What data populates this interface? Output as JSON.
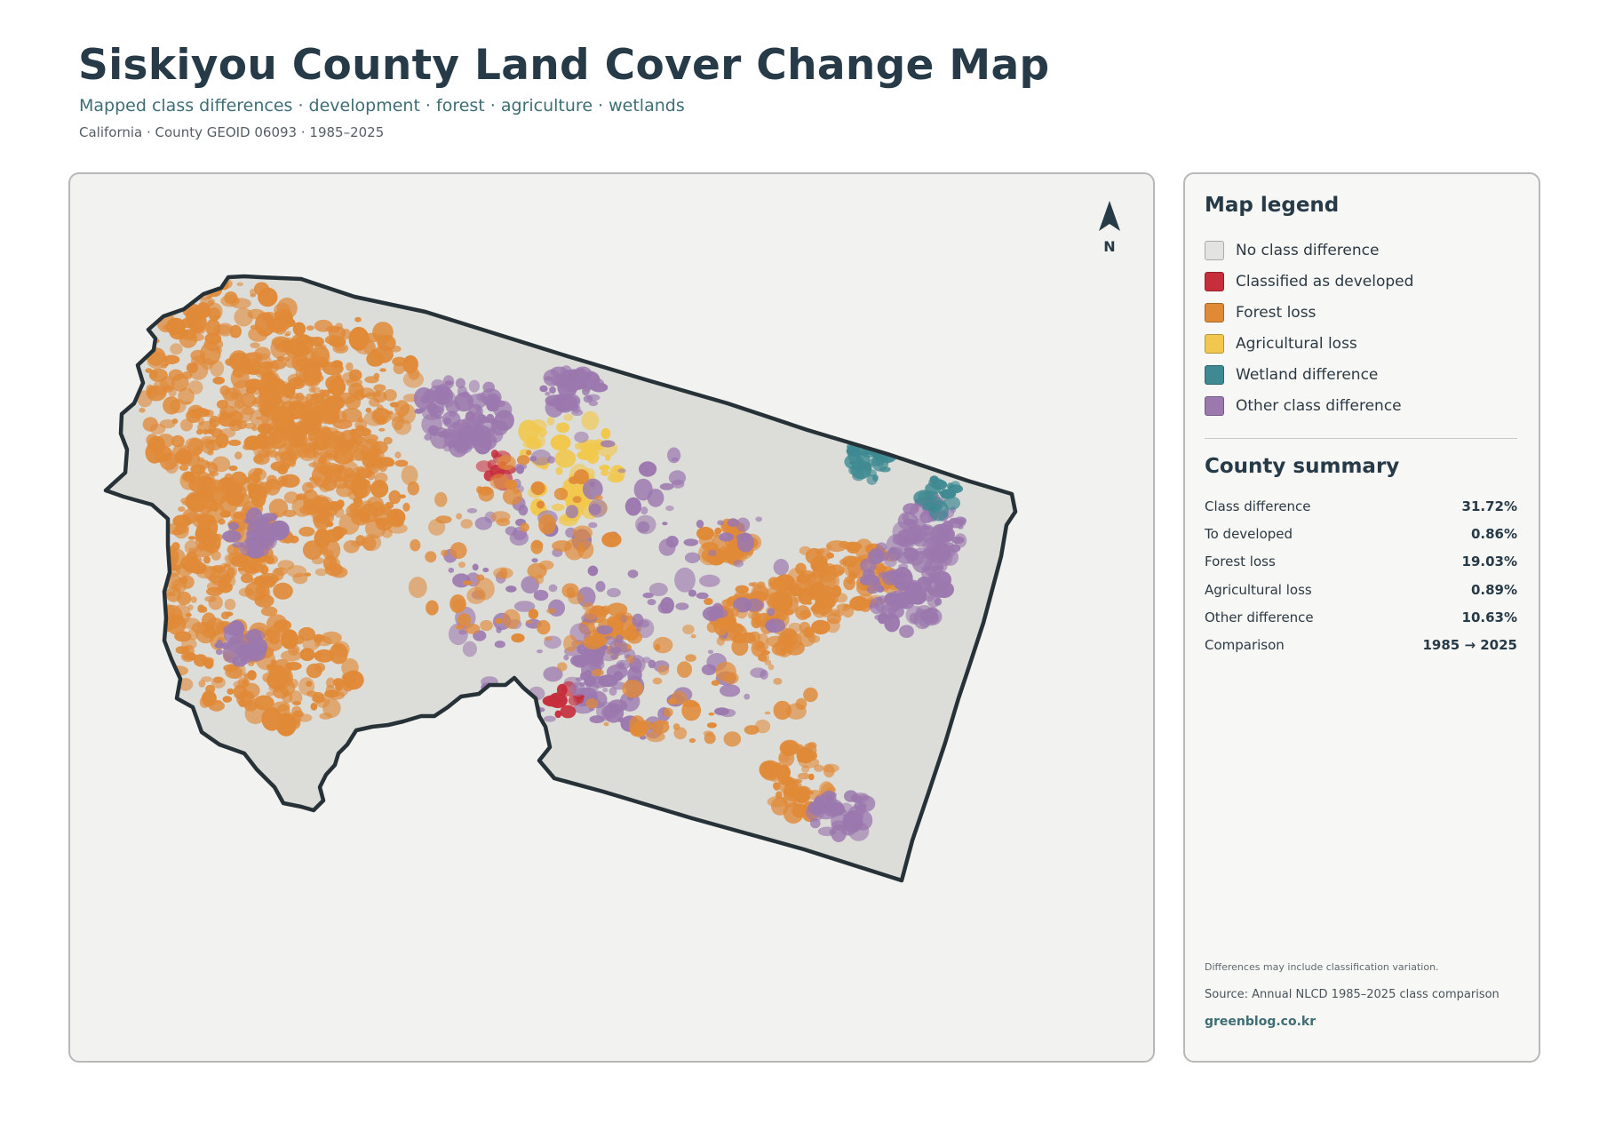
{
  "header": {
    "title": "Siskiyou County Land Cover Change Map",
    "subtitle": "Mapped class differences · development · forest · agriculture · wetlands",
    "meta": "California · County GEOID 06093 · 1985–2025"
  },
  "map": {
    "north_label": "N",
    "colors": {
      "background": "#f2f2f0",
      "county_fill": "#dcdcd8",
      "county_outline": "#263238"
    }
  },
  "legend": {
    "title": "Map legend",
    "items": [
      {
        "label": "No class difference",
        "color": "#e3e3e0"
      },
      {
        "label": "Classified as developed",
        "color": "#c62e3c"
      },
      {
        "label": "Forest loss",
        "color": "#e08a38"
      },
      {
        "label": "Agricultural loss",
        "color": "#f1c84d"
      },
      {
        "label": "Wetland difference",
        "color": "#3f8a92"
      },
      {
        "label": "Other class difference",
        "color": "#9b78ae"
      }
    ]
  },
  "summary": {
    "title": "County summary",
    "rows": [
      {
        "label": "Class difference",
        "value": "31.72%"
      },
      {
        "label": "To developed",
        "value": "0.86%"
      },
      {
        "label": "Forest loss",
        "value": "19.03%"
      },
      {
        "label": "Agricultural loss",
        "value": "0.89%"
      },
      {
        "label": "Other difference",
        "value": "10.63%"
      },
      {
        "label": "Comparison",
        "value": "1985 → 2025"
      }
    ]
  },
  "footer": {
    "note": "Differences may include classification variation.",
    "source": "Source: Annual NLCD 1985–2025 class comparison",
    "credit": "greenblog.co.kr"
  }
}
